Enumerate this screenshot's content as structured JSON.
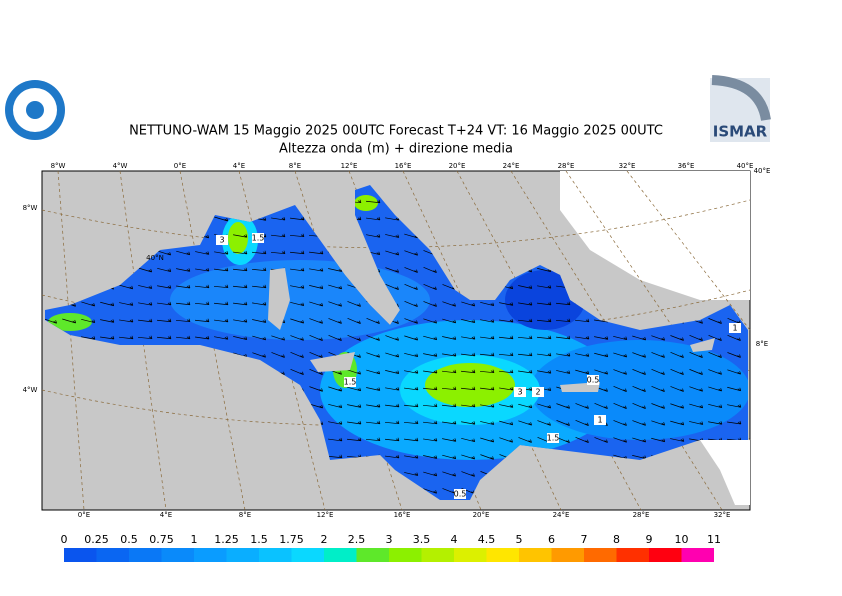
{
  "header": {
    "title": "NETTUNO-WAM  15   Maggio  2025 00UTC Forecast T+24 VT: 16   Maggio  2025 00UTC",
    "subtitle": "Altezza onda (m) + direzione media",
    "logo_right": "ISMAR"
  },
  "map": {
    "top_labels": [
      "8°W",
      "4°W",
      "0°E",
      "4°E",
      "8°E",
      "12°E",
      "16°E",
      "20°E",
      "24°E",
      "28°E",
      "32°E",
      "36°E",
      "40°E"
    ],
    "bottom_labels": [
      "0°E",
      "4°E",
      "8°E",
      "12°E",
      "16°E",
      "20°E",
      "24°E",
      "28°E",
      "32°E"
    ],
    "side_labels": [
      "8°W",
      "4°W",
      "40°N",
      "40°E",
      "8°E"
    ],
    "contour_labels": [
      3,
      1.5,
      1.5,
      3,
      2,
      1.5,
      0.5,
      1,
      0.5,
      1
    ]
  },
  "colorbar": {
    "ticks": [
      0,
      0.25,
      0.5,
      0.75,
      1,
      1.25,
      1.5,
      1.75,
      2,
      2.5,
      3,
      3.5,
      4,
      4.5,
      5,
      6,
      7,
      8,
      9,
      10,
      11
    ],
    "colors": [
      "#0a55ee",
      "#0a66f2",
      "#0a78f6",
      "#0a8afa",
      "#0a9cff",
      "#0aaeff",
      "#0ac2ff",
      "#0ad8ff",
      "#00eec8",
      "#5ee82a",
      "#8cf000",
      "#b4f000",
      "#dcf000",
      "#ffe600",
      "#ffc400",
      "#ff9a00",
      "#ff6a00",
      "#ff3000",
      "#ff0010",
      "#ff00b0"
    ]
  }
}
